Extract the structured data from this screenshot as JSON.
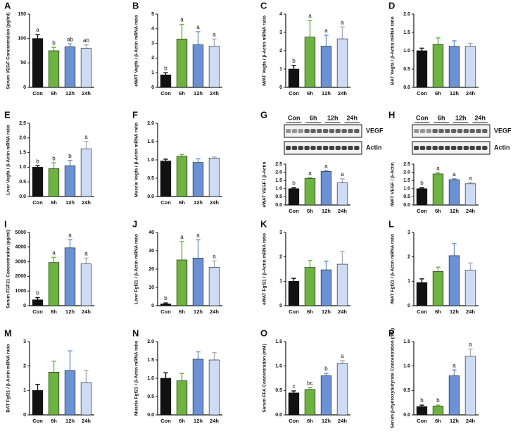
{
  "chart_data": [
    {
      "type": "bar",
      "panel": "A",
      "ylabel": "Serum VEGF Concentration (pg/ml)",
      "categories": [
        "Con",
        "6h",
        "12h",
        "24h"
      ],
      "values": [
        100,
        75,
        83,
        80
      ],
      "errors": [
        8,
        7,
        6,
        7
      ],
      "annotations": [
        "a",
        "b",
        "ab",
        "ab"
      ],
      "colors": [
        "#111111",
        "#6cb33f",
        "#6a92d4",
        "#cddcf3"
      ],
      "ylim": [
        0,
        150
      ],
      "yticks": [
        0,
        50,
        100,
        150
      ]
    },
    {
      "type": "bar",
      "panel": "B",
      "ylabel": "eWAT Vegfa / β-Actin mRNA ratio",
      "categories": [
        "Con",
        "6h",
        "12h",
        "24h"
      ],
      "values": [
        0.85,
        3.3,
        2.9,
        2.8
      ],
      "errors": [
        0.15,
        1.0,
        0.9,
        0.5
      ],
      "annotations": [
        "b",
        "a",
        "a",
        "a"
      ],
      "colors": [
        "#111111",
        "#6cb33f",
        "#6a92d4",
        "#cddcf3"
      ],
      "ylim": [
        0,
        5
      ],
      "yticks": [
        0,
        1,
        2,
        3,
        4,
        5
      ]
    },
    {
      "type": "bar",
      "panel": "C",
      "ylabel": "iWAT Vegfa / β-Actin mRNA ratio",
      "categories": [
        "Con",
        "6h",
        "12h",
        "24h"
      ],
      "values": [
        1.0,
        2.75,
        2.25,
        2.65
      ],
      "errors": [
        0.2,
        0.9,
        0.6,
        0.65
      ],
      "annotations": [
        "b",
        "a",
        "a",
        "a"
      ],
      "colors": [
        "#111111",
        "#6cb33f",
        "#6a92d4",
        "#cddcf3"
      ],
      "ylim": [
        0,
        4
      ],
      "yticks": [
        0,
        1,
        2,
        3,
        4
      ]
    },
    {
      "type": "bar",
      "panel": "D",
      "ylabel": "BAT Vegfa / β-Actin mRNA ratio",
      "categories": [
        "Con",
        "6h",
        "12h",
        "24h"
      ],
      "values": [
        1.0,
        1.17,
        1.12,
        1.12
      ],
      "errors": [
        0.07,
        0.18,
        0.15,
        0.08
      ],
      "colors": [
        "#111111",
        "#6cb33f",
        "#6a92d4",
        "#cddcf3"
      ],
      "ylim": [
        0,
        2
      ],
      "yticks": [
        {
          "value": 0,
          "label": "0.0"
        },
        0.5,
        {
          "value": 1,
          "label": "1.0"
        },
        1.5,
        {
          "value": 2,
          "label": "2.0"
        }
      ]
    },
    {
      "type": "bar",
      "panel": "E",
      "ylabel": "Liver Vegfa / β-Actin mRNA ratio",
      "categories": [
        "Con",
        "6h",
        "12h",
        "24h"
      ],
      "values": [
        1.0,
        0.95,
        1.05,
        1.63
      ],
      "errors": [
        0.05,
        0.2,
        0.18,
        0.25
      ],
      "annotations": [
        "b",
        "b",
        "b",
        "a"
      ],
      "colors": [
        "#111111",
        "#6cb33f",
        "#6a92d4",
        "#cddcf3"
      ],
      "ylim": [
        0,
        2.5
      ],
      "yticks": [
        {
          "value": 0,
          "label": "0.0"
        },
        0.5,
        {
          "value": 1,
          "label": "1.0"
        },
        1.5,
        {
          "value": 2,
          "label": "2.0"
        },
        2.5
      ]
    },
    {
      "type": "bar",
      "panel": "F",
      "ylabel": "Muscle Vegfa / β-Actin mRNA ratio",
      "categories": [
        "Con",
        "6h",
        "12h",
        "24h"
      ],
      "values": [
        0.97,
        1.1,
        0.93,
        1.05
      ],
      "errors": [
        0.05,
        0.05,
        0.1,
        0.03
      ],
      "colors": [
        "#111111",
        "#6cb33f",
        "#6a92d4",
        "#cddcf3"
      ],
      "ylim": [
        0,
        2
      ],
      "yticks": [
        {
          "value": 0,
          "label": "0.0"
        },
        0.5,
        {
          "value": 1,
          "label": "1.0"
        },
        1.5,
        {
          "value": 2,
          "label": "2.0"
        }
      ]
    },
    {
      "type": "bar",
      "panel": "G",
      "ylabel": "eWAT VEGF / β-Actin",
      "categories": [
        "Con",
        "6h",
        "12h",
        "24h"
      ],
      "values": [
        1.0,
        1.62,
        2.05,
        1.35
      ],
      "errors": [
        0.05,
        0.05,
        0.05,
        0.25
      ],
      "annotations": [
        "b",
        "a",
        "a",
        "a"
      ],
      "colors": [
        "#111111",
        "#6cb33f",
        "#6a92d4",
        "#cddcf3"
      ],
      "ylim": [
        0,
        2.5
      ],
      "yticks": [
        {
          "value": 0,
          "label": "0.0"
        },
        0.5,
        {
          "value": 1,
          "label": "1.0"
        },
        1.5,
        {
          "value": 2,
          "label": "2.0"
        },
        2.5
      ],
      "blot": {
        "lanes": [
          "Con",
          "6h",
          "12h",
          "24h"
        ],
        "bands": [
          "VEGF",
          "Actin"
        ]
      }
    },
    {
      "type": "bar",
      "panel": "H",
      "ylabel": "iWAT VEGF / β-Actin",
      "categories": [
        "Con",
        "6h",
        "12h",
        "24h"
      ],
      "values": [
        1.0,
        1.9,
        1.55,
        1.3
      ],
      "errors": [
        0.05,
        0.07,
        0.05,
        0.07
      ],
      "annotations": [
        "b",
        "a",
        "a",
        "a"
      ],
      "colors": [
        "#111111",
        "#6cb33f",
        "#6a92d4",
        "#cddcf3"
      ],
      "ylim": [
        0,
        2.5
      ],
      "yticks": [
        {
          "value": 0,
          "label": "0.0"
        },
        0.5,
        {
          "value": 1,
          "label": "1.0"
        },
        1.5,
        {
          "value": 2,
          "label": "2.0"
        },
        2.5
      ],
      "blot": {
        "lanes": [
          "Con",
          "6h",
          "12h",
          "24h"
        ],
        "bands": [
          "VEGF",
          "Actin"
        ]
      }
    },
    {
      "type": "bar",
      "panel": "I",
      "ylabel": "Serum FGF21 Concentration (pg/ml)",
      "categories": [
        "Con",
        "6h",
        "12h",
        "24h"
      ],
      "values": [
        400,
        2950,
        3950,
        2850
      ],
      "errors": [
        150,
        350,
        550,
        400
      ],
      "annotations": [
        "b",
        "a",
        "a",
        "a"
      ],
      "colors": [
        "#111111",
        "#6cb33f",
        "#6a92d4",
        "#cddcf3"
      ],
      "ylim": [
        0,
        5000
      ],
      "yticks": [
        0,
        1000,
        2000,
        3000,
        4000,
        5000
      ]
    },
    {
      "type": "bar",
      "panel": "J",
      "ylabel": "Liver Fgf21 / β-Actin mRNA ratio",
      "categories": [
        "Con",
        "6h",
        "12h",
        "24h"
      ],
      "values": [
        1,
        25,
        26,
        21
      ],
      "errors": [
        0.5,
        10,
        10,
        3.5
      ],
      "annotations": [
        "b",
        "a",
        "a",
        "a"
      ],
      "colors": [
        "#111111",
        "#6cb33f",
        "#6a92d4",
        "#cddcf3"
      ],
      "ylim": [
        0,
        40
      ],
      "yticks": [
        0,
        10,
        20,
        30,
        40
      ]
    },
    {
      "type": "bar",
      "panel": "K",
      "ylabel": "eWAT Fgf21 / β-Actin mRNA ratio",
      "categories": [
        "Con",
        "6h",
        "12h",
        "24h"
      ],
      "values": [
        1.0,
        1.57,
        1.47,
        1.7
      ],
      "errors": [
        0.12,
        0.28,
        0.35,
        0.52
      ],
      "colors": [
        "#111111",
        "#6cb33f",
        "#6a92d4",
        "#cddcf3"
      ],
      "ylim": [
        0,
        3
      ],
      "yticks": [
        0,
        1,
        2,
        3
      ]
    },
    {
      "type": "bar",
      "panel": "L",
      "ylabel": "iWAT Fgf21 / β-Actin mRNA ratio",
      "categories": [
        "Con",
        "6h",
        "12h",
        "24h"
      ],
      "values": [
        0.95,
        1.4,
        2.05,
        1.45
      ],
      "errors": [
        0.15,
        0.18,
        0.5,
        0.3
      ],
      "colors": [
        "#111111",
        "#6cb33f",
        "#6a92d4",
        "#cddcf3"
      ],
      "ylim": [
        0,
        3
      ],
      "yticks": [
        0,
        1,
        2,
        3
      ]
    },
    {
      "type": "bar",
      "panel": "M",
      "ylabel": "BAT Fgf21 / β-Actin mRNA ratio",
      "categories": [
        "Con",
        "6h",
        "12h",
        "24h"
      ],
      "values": [
        1.0,
        1.75,
        1.82,
        1.32
      ],
      "errors": [
        0.25,
        0.45,
        0.8,
        0.5
      ],
      "colors": [
        "#111111",
        "#6cb33f",
        "#6a92d4",
        "#cddcf3"
      ],
      "ylim": [
        0,
        3
      ],
      "yticks": [
        0,
        1,
        2,
        3
      ]
    },
    {
      "type": "bar",
      "panel": "N",
      "ylabel": "Muscle Fgf21 / β-Actin mRNA ratio",
      "categories": [
        "Con",
        "6h",
        "12h",
        "24h"
      ],
      "values": [
        1.0,
        0.93,
        1.52,
        1.5
      ],
      "errors": [
        0.15,
        0.2,
        0.2,
        0.2
      ],
      "colors": [
        "#111111",
        "#6cb33f",
        "#6a92d4",
        "#cddcf3"
      ],
      "ylim": [
        0,
        2
      ],
      "yticks": [
        {
          "value": 0,
          "label": "0.0"
        },
        0.5,
        {
          "value": 1,
          "label": "1.0"
        },
        1.5,
        {
          "value": 2,
          "label": "2.0"
        }
      ]
    },
    {
      "type": "bar",
      "panel": "O",
      "ylabel": "Serum FFA Concentration (mM)",
      "categories": [
        "Con",
        "6h",
        "12h",
        "24h"
      ],
      "values": [
        0.45,
        0.52,
        0.8,
        1.05
      ],
      "errors": [
        0.04,
        0.04,
        0.05,
        0.06
      ],
      "annotations": [
        "c",
        "bc",
        "b",
        "a"
      ],
      "colors": [
        "#111111",
        "#6cb33f",
        "#6a92d4",
        "#cddcf3"
      ],
      "ylim": [
        0,
        1.5
      ],
      "yticks": [
        {
          "value": 0,
          "label": "0.0"
        },
        0.5,
        {
          "value": 1,
          "label": "1.0"
        },
        1.5
      ]
    },
    {
      "type": "bar",
      "panel": "P",
      "ylabel": "Serum β-hydroxybutyrate Concentration (mM)",
      "categories": [
        "Con",
        "6h",
        "12h",
        "24h"
      ],
      "values": [
        0.17,
        0.18,
        0.8,
        1.2
      ],
      "errors": [
        0.03,
        0.02,
        0.12,
        0.15
      ],
      "annotations": [
        "b",
        "b",
        "a",
        "a"
      ],
      "colors": [
        "#111111",
        "#6cb33f",
        "#6a92d4",
        "#cddcf3"
      ],
      "ylim": [
        0,
        1.5
      ],
      "yticks": [
        {
          "value": 0,
          "label": "0.0"
        },
        0.5,
        {
          "value": 1,
          "label": "1.0"
        },
        1.5
      ]
    }
  ]
}
